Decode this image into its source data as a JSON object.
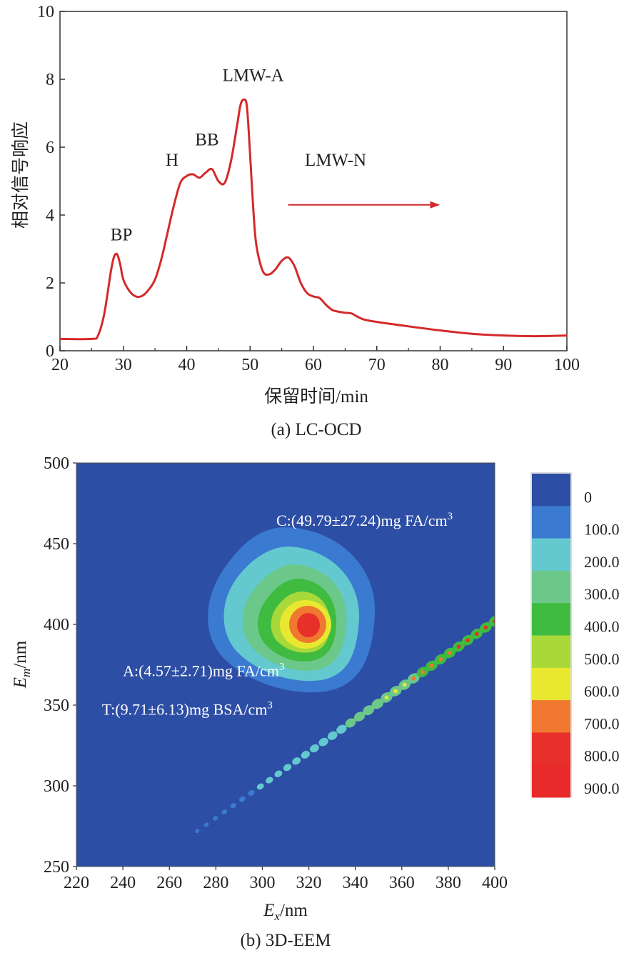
{
  "chart_data": [
    {
      "type": "line",
      "caption": "(a) LC-OCD",
      "xlabel": "保留时间/min",
      "ylabel": "相对信号响应",
      "xlim": [
        20,
        100
      ],
      "ylim": [
        0,
        10
      ],
      "xticks": [
        "20",
        "30",
        "40",
        "50",
        "60",
        "70",
        "80",
        "90",
        "100"
      ],
      "yticks": [
        "0",
        "2",
        "4",
        "6",
        "8",
        "10"
      ],
      "grid": false,
      "color": "#d42a2a",
      "series": [
        {
          "x": [
            20,
            25,
            26,
            27,
            28,
            28.5,
            29,
            29.5,
            30,
            31,
            32,
            33,
            34,
            35,
            36,
            37,
            38,
            39,
            40,
            41,
            42,
            43,
            44,
            45,
            46,
            47,
            48,
            48.5,
            49,
            49.5,
            50,
            50.5,
            51,
            52,
            53,
            54,
            55,
            56,
            57,
            58,
            59,
            60,
            61,
            62,
            63,
            64,
            65,
            66,
            67,
            68,
            70,
            75,
            80,
            85,
            90,
            95,
            100
          ],
          "y": [
            0.35,
            0.35,
            0.45,
            1.1,
            2.3,
            2.75,
            2.85,
            2.55,
            2.1,
            1.75,
            1.6,
            1.62,
            1.8,
            2.1,
            2.7,
            3.5,
            4.3,
            4.95,
            5.15,
            5.2,
            5.1,
            5.25,
            5.35,
            5.0,
            4.95,
            5.6,
            6.7,
            7.25,
            7.4,
            7.2,
            5.8,
            4.2,
            3.1,
            2.35,
            2.25,
            2.4,
            2.65,
            2.75,
            2.5,
            2.0,
            1.7,
            1.6,
            1.55,
            1.35,
            1.2,
            1.15,
            1.12,
            1.1,
            1.0,
            0.92,
            0.85,
            0.72,
            0.6,
            0.5,
            0.45,
            0.43,
            0.45
          ]
        }
      ],
      "annotations": [
        {
          "text": "BP",
          "x": 29.7,
          "y": 3.25
        },
        {
          "text": "H",
          "x": 37.7,
          "y": 5.45
        },
        {
          "text": "BB",
          "x": 43.2,
          "y": 6.05
        },
        {
          "text": "LMW-A",
          "x": 50.5,
          "y": 7.95
        },
        {
          "text": "LMW-N",
          "x": 63.5,
          "y": 5.45
        },
        {
          "text": "arrow",
          "x_start": 56,
          "x_end": 80,
          "y": 4.3
        }
      ]
    },
    {
      "type": "heatmap",
      "caption": "(b) 3D-EEM",
      "xlabel": "Ex/nm",
      "ylabel": "Em/nm",
      "xlabel_main": "E",
      "xlabel_sub": "x",
      "xlabel_unit": "/nm",
      "ylabel_main": "E",
      "ylabel_sub": "m",
      "ylabel_unit": "/nm",
      "xlim": [
        220,
        400
      ],
      "ylim": [
        250,
        500
      ],
      "xticks": [
        "220",
        "240",
        "260",
        "280",
        "300",
        "320",
        "340",
        "360",
        "380",
        "400"
      ],
      "yticks": [
        "250",
        "300",
        "350",
        "400",
        "450",
        "500"
      ],
      "background_color": "#2d4ea5",
      "colorbar": {
        "levels": [
          "0",
          "100.0",
          "200.0",
          "300.0",
          "400.0",
          "500.0",
          "600.0",
          "700.0",
          "800.0",
          "900.0"
        ],
        "colors": [
          "#2d4ea5",
          "#3a7ad0",
          "#63c9cf",
          "#6cc88a",
          "#3fbb3f",
          "#a8d83a",
          "#e8e830",
          "#f07830",
          "#e8302a",
          "#e82a2a"
        ]
      },
      "peak_center": {
        "ex": 322,
        "em": 387
      },
      "annotations": [
        {
          "text": "C:(49.79±27.24)mg  FA/cm",
          "sup": "3",
          "ex": 306,
          "em": 461
        },
        {
          "text": "A:(4.57±2.71)mg  FA/cm",
          "sup": "3",
          "ex": 240,
          "em": 368
        },
        {
          "text": "T:(9.71±6.13)mg  BSA/cm",
          "sup": "3",
          "ex": 231,
          "em": 344
        }
      ],
      "scatter_ridge": {
        "from": [
          272,
          272
        ],
        "to": [
          400,
          402
        ]
      }
    }
  ]
}
